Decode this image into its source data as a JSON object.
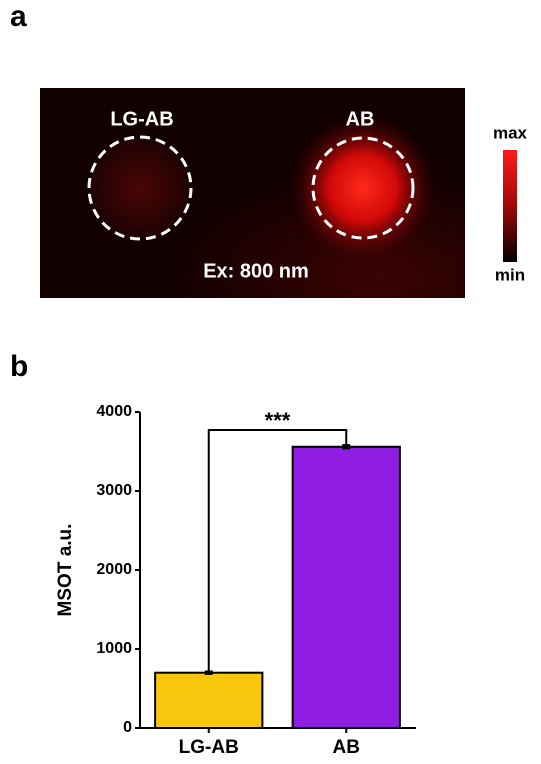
{
  "panel_labels": [
    "a",
    "b"
  ],
  "image": {
    "labels": [
      "LG-AB",
      "AB"
    ],
    "caption": "Ex: 800 nm",
    "colorbar": {
      "max": "max",
      "min": "min"
    }
  },
  "chart_data": {
    "type": "bar",
    "y_label": "MSOT a.u.",
    "categories": [
      "LG-AB",
      "AB"
    ],
    "values": [
      700,
      3560
    ],
    "errors": [
      15,
      20
    ],
    "colors": [
      "#f9c80e",
      "#8f1ee0"
    ],
    "ylim": [
      0,
      4000
    ],
    "yticks": [
      0,
      1000,
      2000,
      3000,
      4000
    ],
    "annotation": "***"
  }
}
